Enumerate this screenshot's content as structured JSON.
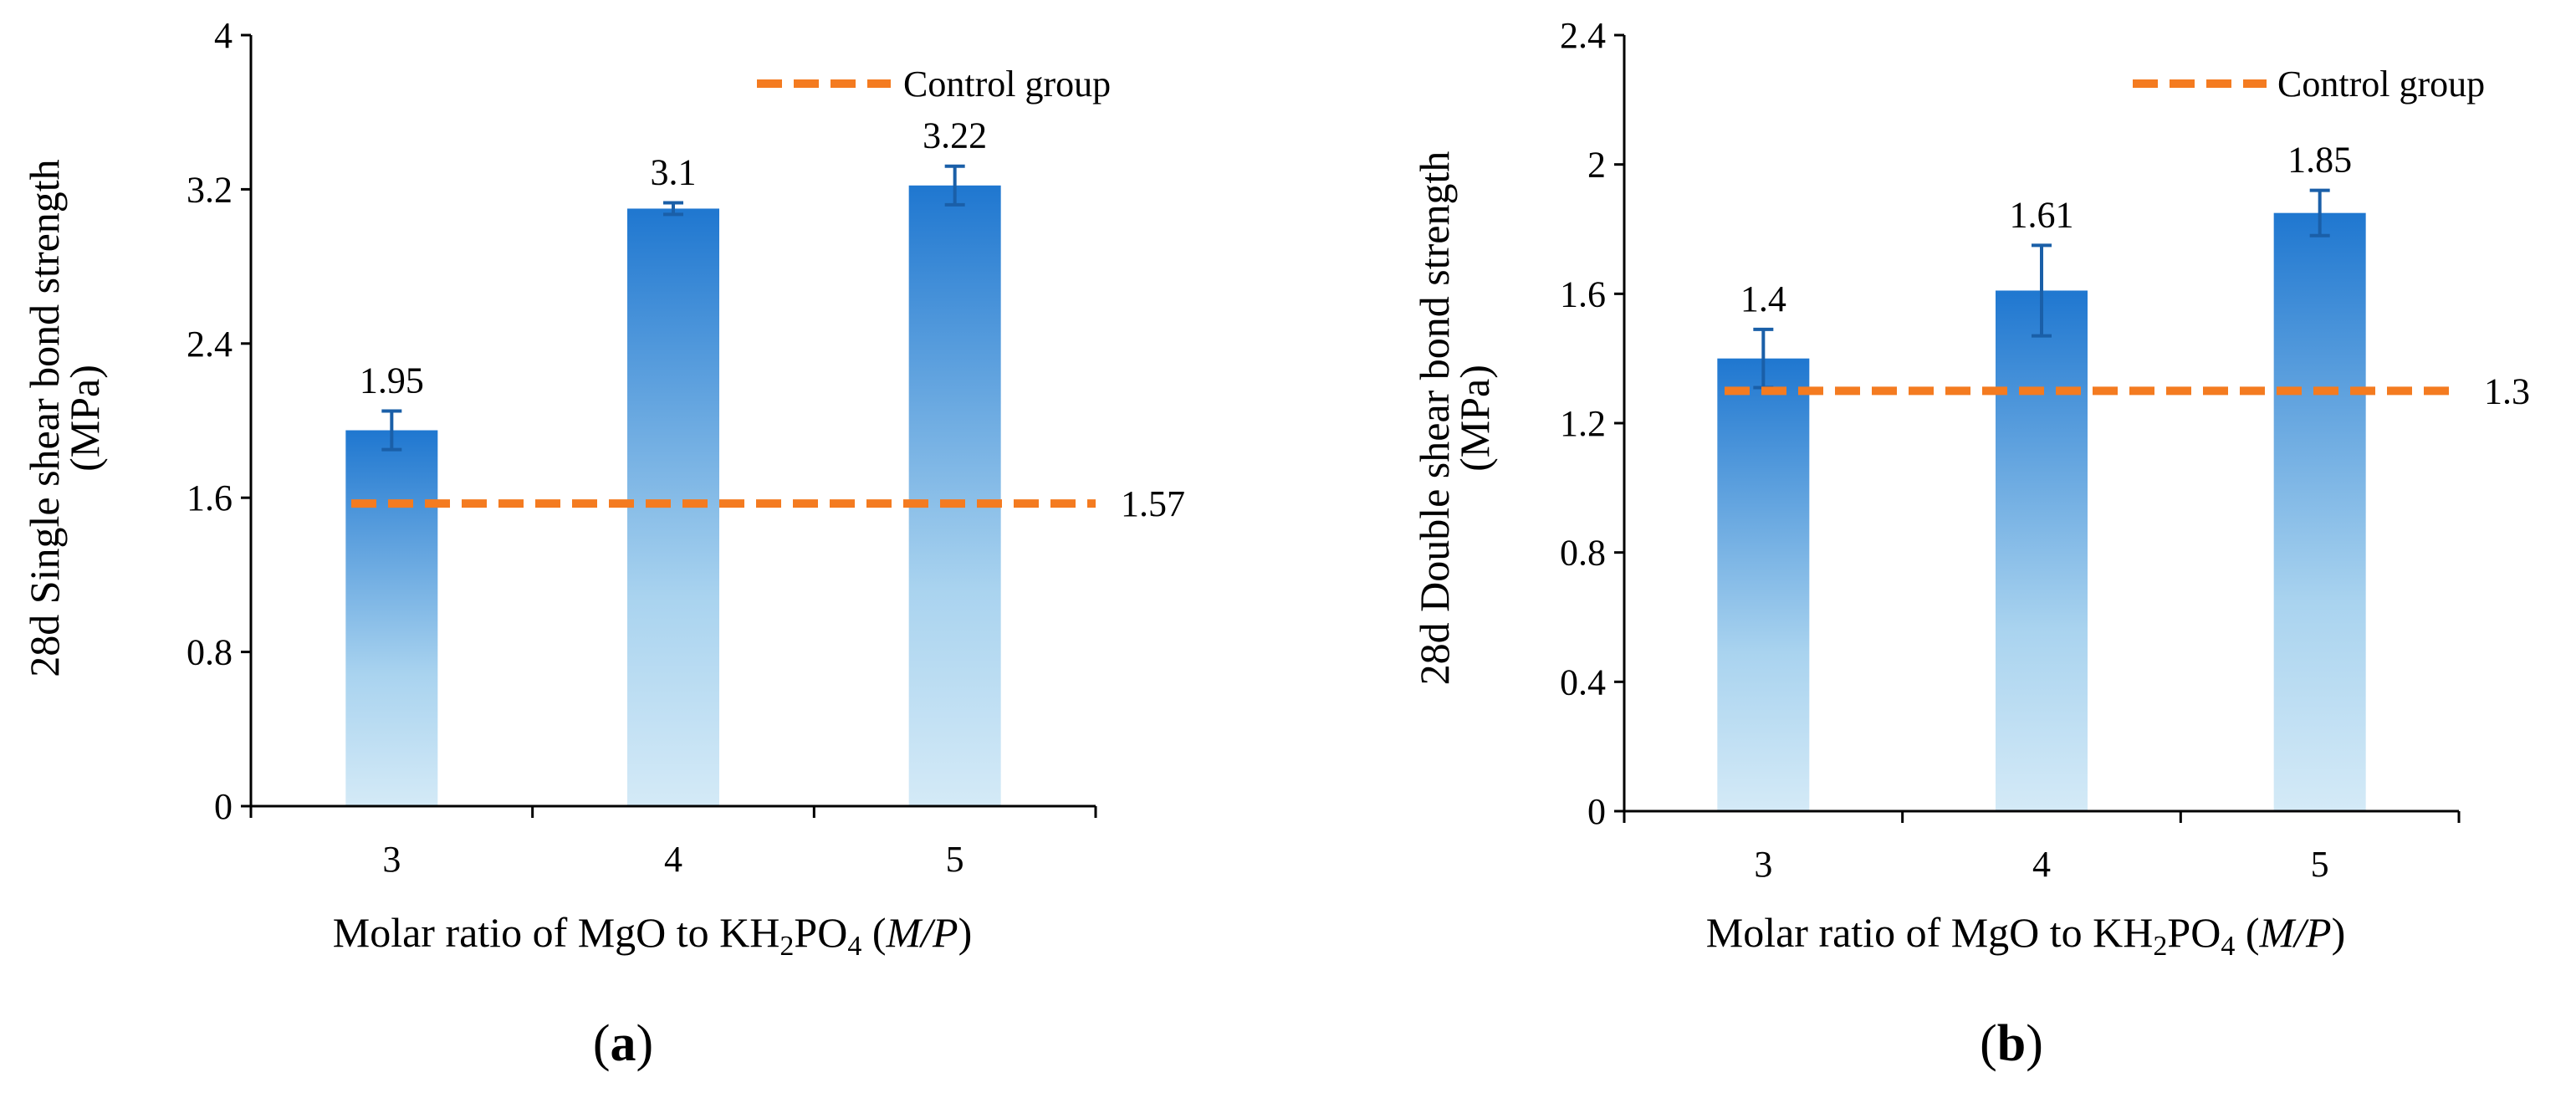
{
  "colors": {
    "bar_top": "#1f77d0",
    "bar_bottom": "#d4eaf7",
    "control": "#f47b20",
    "axis": "#000000",
    "error_bar": "#1a5fa8"
  },
  "chart_data": [
    {
      "type": "bar",
      "panel": "(a)",
      "panel_letter": "a",
      "categories": [
        "3",
        "4",
        "5"
      ],
      "values": [
        1.95,
        3.1,
        3.22
      ],
      "value_labels": [
        "1.95",
        "3.1",
        "3.22"
      ],
      "error": [
        0.1,
        0.03,
        0.1
      ],
      "control_value": 1.57,
      "control_label": "1.57",
      "legend": "Control group",
      "legend_position": "top-right",
      "ylabel_line1": "28d Single  shear bond strength",
      "ylabel_line2": "(MPa)",
      "xlabel_main": "Molar ratio of MgO to KH",
      "xlabel_sub1": "2",
      "xlabel_mid": "PO",
      "xlabel_sub2": "4",
      "xlabel_italic": "M/P",
      "ylim": [
        0,
        4
      ],
      "yticks": [
        0,
        0.8,
        1.6,
        2.4,
        3.2,
        4
      ],
      "ytick_labels": [
        "0",
        "0.8",
        "1.6",
        "2.4",
        "3.2",
        "4"
      ],
      "grid": false
    },
    {
      "type": "bar",
      "panel": "(b)",
      "panel_letter": "b",
      "categories": [
        "3",
        "4",
        "5"
      ],
      "values": [
        1.4,
        1.61,
        1.85
      ],
      "value_labels": [
        "1.4",
        "1.61",
        "1.85"
      ],
      "error": [
        0.09,
        0.14,
        0.07
      ],
      "control_value": 1.3,
      "control_label": "1.3",
      "legend": "Control group",
      "legend_position": "top-right",
      "ylabel_line1": "28d Double  shear bond strength",
      "ylabel_line2": "(MPa)",
      "xlabel_main": "Molar ratio of MgO to KH",
      "xlabel_sub1": "2",
      "xlabel_mid": "PO",
      "xlabel_sub2": "4",
      "xlabel_italic": "M/P",
      "ylim": [
        0,
        2.4
      ],
      "yticks": [
        0,
        0.4,
        0.8,
        1.2,
        1.6,
        2.0,
        2.4
      ],
      "ytick_labels": [
        "0",
        "0.4",
        "0.8",
        "1.2",
        "1.6",
        "2",
        "2.4"
      ],
      "grid": false
    }
  ]
}
